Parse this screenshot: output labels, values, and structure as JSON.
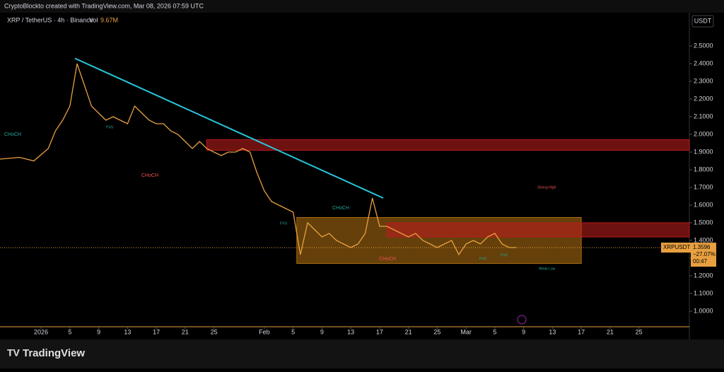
{
  "header": {
    "credit": "CryptoBlockto created with TradingView.com, Mar 08, 2026 07:59 UTC"
  },
  "chart_data": {
    "type": "line",
    "title": "XRP / TetherUS · 4h · Binance",
    "volume_label": "Vol",
    "volume": "9.67M",
    "axis_unit": "USDT",
    "x": [
      -5.7,
      -3,
      -1,
      1,
      2,
      3,
      4,
      5,
      6,
      7,
      8,
      9,
      10,
      11,
      12,
      13,
      14,
      15,
      16,
      17,
      18,
      19,
      20,
      21,
      22,
      23,
      24,
      25,
      26,
      27,
      28,
      29,
      30,
      31,
      32,
      33,
      34,
      35,
      36,
      37,
      38,
      39,
      40,
      41,
      42,
      43,
      44,
      45,
      46,
      47,
      48,
      49,
      50,
      51,
      52,
      53,
      54,
      55,
      56,
      57,
      58,
      59,
      60,
      61,
      62,
      63,
      64,
      65,
      66
    ],
    "series": [
      {
        "name": "XRPUSDT",
        "color": "#e8a040",
        "values": [
          1.86,
          1.87,
          1.85,
          1.92,
          2.02,
          2.08,
          2.16,
          2.4,
          2.28,
          2.16,
          2.12,
          2.08,
          2.1,
          2.08,
          2.06,
          2.16,
          2.12,
          2.08,
          2.06,
          2.06,
          2.02,
          2.0,
          1.96,
          1.92,
          1.96,
          1.92,
          1.9,
          1.88,
          1.9,
          1.9,
          1.92,
          1.9,
          1.78,
          1.68,
          1.62,
          1.6,
          1.58,
          1.56,
          1.32,
          1.5,
          1.46,
          1.42,
          1.44,
          1.4,
          1.38,
          1.36,
          1.38,
          1.44,
          1.64,
          1.48,
          1.48,
          1.46,
          1.44,
          1.42,
          1.44,
          1.4,
          1.38,
          1.36,
          1.38,
          1.4,
          1.32,
          1.38,
          1.4,
          1.38,
          1.42,
          1.44,
          1.38,
          1.36,
          1.36
        ]
      }
    ],
    "xlim": [
      -5.7,
      90
    ],
    "xticks": [
      {
        "value": 0,
        "label": "2026"
      },
      {
        "value": 4,
        "label": "5"
      },
      {
        "value": 8,
        "label": "9"
      },
      {
        "value": 12,
        "label": "13"
      },
      {
        "value": 16,
        "label": "17"
      },
      {
        "value": 20,
        "label": "21"
      },
      {
        "value": 24,
        "label": "25"
      },
      {
        "value": 31,
        "label": "Feb"
      },
      {
        "value": 35,
        "label": "5"
      },
      {
        "value": 39,
        "label": "9"
      },
      {
        "value": 43,
        "label": "13"
      },
      {
        "value": 47,
        "label": "17"
      },
      {
        "value": 51,
        "label": "21"
      },
      {
        "value": 55,
        "label": "25"
      },
      {
        "value": 59,
        "label": "Mar"
      },
      {
        "value": 63,
        "label": "5"
      },
      {
        "value": 67,
        "label": "9"
      },
      {
        "value": 71,
        "label": "13"
      },
      {
        "value": 75,
        "label": "17"
      },
      {
        "value": 79,
        "label": "21"
      },
      {
        "value": 83,
        "label": "25"
      }
    ],
    "ylim": [
      0.912,
      2.688
    ],
    "yticks": [
      {
        "value": 1.0,
        "label": "1.0000"
      },
      {
        "value": 1.1,
        "label": "1.1000"
      },
      {
        "value": 1.2,
        "label": "1.2000"
      },
      {
        "value": 1.3,
        "label": "1.3000"
      },
      {
        "value": 1.4,
        "label": "1.4000"
      },
      {
        "value": 1.5,
        "label": "1.5000"
      },
      {
        "value": 1.6,
        "label": "1.6000"
      },
      {
        "value": 1.7,
        "label": "1.7000"
      },
      {
        "value": 1.8,
        "label": "1.8000"
      },
      {
        "value": 1.9,
        "label": "1.9000"
      },
      {
        "value": 2.0,
        "label": "2.0000"
      },
      {
        "value": 2.1,
        "label": "2.1000"
      },
      {
        "value": 2.2,
        "label": "2.2000"
      },
      {
        "value": 2.3,
        "label": "2.3000"
      },
      {
        "value": 2.4,
        "label": "2.4000"
      },
      {
        "value": 2.5,
        "label": "2.5000"
      }
    ],
    "trendline": {
      "x": [
        4.7,
        47.5
      ],
      "y": [
        2.43,
        1.64
      ],
      "color": "#26c6da"
    },
    "zones": [
      {
        "x": [
          23,
          90
        ],
        "y": [
          1.91,
          1.97
        ],
        "color": "#b71c1c"
      },
      {
        "x": [
          35.5,
          75
        ],
        "y": [
          1.27,
          1.53
        ],
        "color": "#a86a10"
      },
      {
        "x": [
          48,
          90
        ],
        "y": [
          1.42,
          1.5
        ],
        "color": "#b71c1c"
      }
    ],
    "annotations": [
      "CHoCH",
      "CHoCH",
      "CHoCH",
      "CHoCH",
      "Strong High",
      "Weak Low",
      "FVG",
      "FVG",
      "FVG",
      "FVG"
    ],
    "last_price": 1.3596,
    "badge": {
      "symbol": "XRPUSDT",
      "change": "−27.07%",
      "countdown": "00:47"
    }
  },
  "footer": {
    "brand": "TradingView"
  }
}
